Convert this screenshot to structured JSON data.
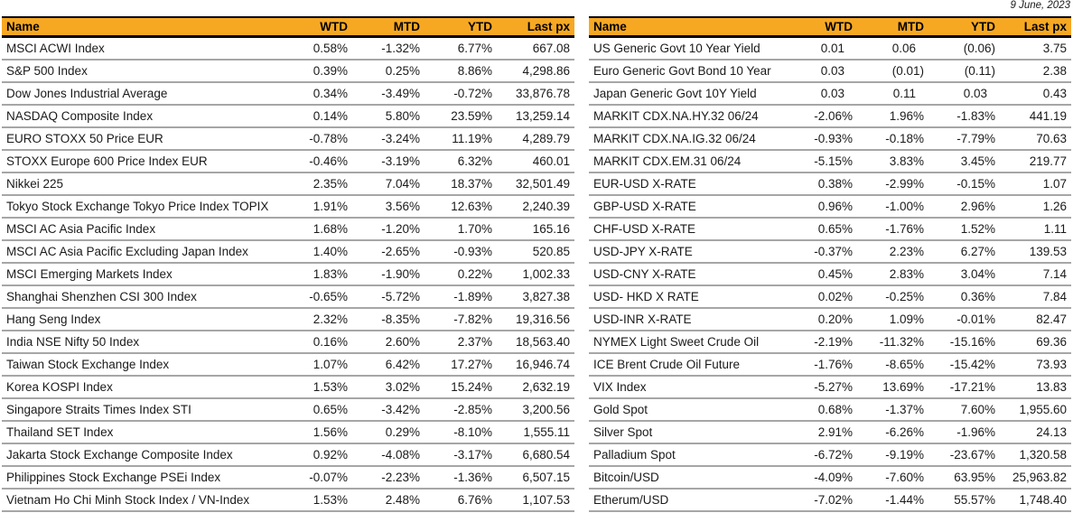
{
  "date_label": "9 June, 2023",
  "columns": [
    "Name",
    "WTD",
    "MTD",
    "YTD",
    "Last px"
  ],
  "colors": {
    "header_bg": "#F7A823",
    "header_border": "#000000",
    "row_border": "#A6A6A6",
    "text": "#1A1A1A"
  },
  "left_table": {
    "rows": [
      {
        "name": "MSCI ACWI Index",
        "wtd": "0.58%",
        "mtd": "-1.32%",
        "ytd": "6.77%",
        "last": "667.08"
      },
      {
        "name": "S&P 500 Index",
        "wtd": "0.39%",
        "mtd": "0.25%",
        "ytd": "8.86%",
        "last": "4,298.86"
      },
      {
        "name": "Dow Jones Industrial Average",
        "wtd": "0.34%",
        "mtd": "-3.49%",
        "ytd": "-0.72%",
        "last": "33,876.78"
      },
      {
        "name": "NASDAQ Composite Index",
        "wtd": "0.14%",
        "mtd": "5.80%",
        "ytd": "23.59%",
        "last": "13,259.14"
      },
      {
        "name": "EURO STOXX 50 Price EUR",
        "wtd": "-0.78%",
        "mtd": "-3.24%",
        "ytd": "11.19%",
        "last": "4,289.79"
      },
      {
        "name": "STOXX Europe 600 Price Index EUR",
        "wtd": "-0.46%",
        "mtd": "-3.19%",
        "ytd": "6.32%",
        "last": "460.01"
      },
      {
        "name": "Nikkei 225",
        "wtd": "2.35%",
        "mtd": "7.04%",
        "ytd": "18.37%",
        "last": "32,501.49"
      },
      {
        "name": "Tokyo Stock Exchange Tokyo Price Index TOPIX",
        "wtd": "1.91%",
        "mtd": "3.56%",
        "ytd": "12.63%",
        "last": "2,240.39"
      },
      {
        "name": "MSCI AC Asia Pacific Index",
        "wtd": "1.68%",
        "mtd": "-1.20%",
        "ytd": "1.70%",
        "last": "165.16"
      },
      {
        "name": "MSCI AC Asia Pacific Excluding Japan Index",
        "wtd": "1.40%",
        "mtd": "-2.65%",
        "ytd": "-0.93%",
        "last": "520.85"
      },
      {
        "name": "MSCI Emerging Markets Index",
        "wtd": "1.83%",
        "mtd": "-1.90%",
        "ytd": "0.22%",
        "last": "1,002.33"
      },
      {
        "name": "Shanghai Shenzhen CSI 300 Index",
        "wtd": "-0.65%",
        "mtd": "-5.72%",
        "ytd": "-1.89%",
        "last": "3,827.38"
      },
      {
        "name": "Hang Seng Index",
        "wtd": "2.32%",
        "mtd": "-8.35%",
        "ytd": "-7.82%",
        "last": "19,316.56"
      },
      {
        "name": "India NSE Nifty 50 Index",
        "wtd": "0.16%",
        "mtd": "2.60%",
        "ytd": "2.37%",
        "last": "18,563.40"
      },
      {
        "name": "Taiwan Stock Exchange  Index",
        "wtd": "1.07%",
        "mtd": "6.42%",
        "ytd": "17.27%",
        "last": "16,946.74"
      },
      {
        "name": "Korea KOSPI Index",
        "wtd": "1.53%",
        "mtd": "3.02%",
        "ytd": "15.24%",
        "last": "2,632.19"
      },
      {
        "name": "Singapore Straits Times Index STI",
        "wtd": "0.65%",
        "mtd": "-3.42%",
        "ytd": "-2.85%",
        "last": "3,200.56"
      },
      {
        "name": "Thailand SET Index",
        "wtd": "1.56%",
        "mtd": "0.29%",
        "ytd": "-8.10%",
        "last": "1,555.11"
      },
      {
        "name": "Jakarta Stock Exchange Composite Index",
        "wtd": "0.92%",
        "mtd": "-4.08%",
        "ytd": "-3.17%",
        "last": "6,680.54"
      },
      {
        "name": "Philippines Stock Exchange PSEi Index",
        "wtd": "-0.07%",
        "mtd": "-2.23%",
        "ytd": "-1.36%",
        "last": "6,507.15"
      },
      {
        "name": "Vietnam Ho Chi Minh Stock Index / VN-Index",
        "wtd": "1.53%",
        "mtd": "2.48%",
        "ytd": "6.76%",
        "last": "1,107.53"
      }
    ]
  },
  "right_table": {
    "rows": [
      {
        "name": "US Generic Govt 10 Year Yield",
        "wtd": "0.01",
        "mtd": "0.06",
        "ytd": "(0.06)",
        "last": "3.75"
      },
      {
        "name": "Euro Generic Govt Bond 10 Year",
        "wtd": "0.03",
        "mtd": "(0.01)",
        "ytd": "(0.11)",
        "last": "2.38"
      },
      {
        "name": "Japan Generic Govt 10Y Yield",
        "wtd": "0.03",
        "mtd": "0.11",
        "ytd": "0.03",
        "last": "0.43"
      },
      {
        "name": "MARKIT CDX.NA.HY.32 06/24",
        "wtd": "-2.06%",
        "mtd": "1.96%",
        "ytd": "-1.83%",
        "last": "441.19"
      },
      {
        "name": "MARKIT CDX.NA.IG.32 06/24",
        "wtd": "-0.93%",
        "mtd": "-0.18%",
        "ytd": "-7.79%",
        "last": "70.63"
      },
      {
        "name": "MARKIT CDX.EM.31 06/24",
        "wtd": "-5.15%",
        "mtd": "3.83%",
        "ytd": "3.45%",
        "last": "219.77"
      },
      {
        "name": "EUR-USD X-RATE",
        "wtd": "0.38%",
        "mtd": "-2.99%",
        "ytd": "-0.15%",
        "last": "1.07"
      },
      {
        "name": "GBP-USD X-RATE",
        "wtd": "0.96%",
        "mtd": "-1.00%",
        "ytd": "2.96%",
        "last": "1.26"
      },
      {
        "name": "CHF-USD X-RATE",
        "wtd": "0.65%",
        "mtd": "-1.76%",
        "ytd": "1.52%",
        "last": "1.11"
      },
      {
        "name": "USD-JPY X-RATE",
        "wtd": "-0.37%",
        "mtd": "2.23%",
        "ytd": "6.27%",
        "last": "139.53"
      },
      {
        "name": "USD-CNY X-RATE",
        "wtd": "0.45%",
        "mtd": "2.83%",
        "ytd": "3.04%",
        "last": "7.14"
      },
      {
        "name": "USD- HKD X RATE",
        "wtd": "0.02%",
        "mtd": "-0.25%",
        "ytd": "0.36%",
        "last": "7.84"
      },
      {
        "name": "USD-INR X-RATE",
        "wtd": "0.20%",
        "mtd": "1.09%",
        "ytd": "-0.01%",
        "last": "82.47"
      },
      {
        "name": "NYMEX Light Sweet Crude Oil",
        "wtd": "-2.19%",
        "mtd": "-11.32%",
        "ytd": "-15.16%",
        "last": "69.36"
      },
      {
        "name": "ICE Brent Crude Oil Future",
        "wtd": "-1.76%",
        "mtd": "-8.65%",
        "ytd": "-15.42%",
        "last": "73.93"
      },
      {
        "name": "VIX Index",
        "wtd": "-5.27%",
        "mtd": "13.69%",
        "ytd": "-17.21%",
        "last": "13.83"
      },
      {
        "name": "Gold Spot",
        "wtd": "0.68%",
        "mtd": "-1.37%",
        "ytd": "7.60%",
        "last": "1,955.60"
      },
      {
        "name": "Silver Spot",
        "wtd": "2.91%",
        "mtd": "-6.26%",
        "ytd": "-1.96%",
        "last": "24.13"
      },
      {
        "name": "Palladium Spot",
        "wtd": "-6.72%",
        "mtd": "-9.19%",
        "ytd": "-23.67%",
        "last": "1,320.58"
      },
      {
        "name": "Bitcoin/USD",
        "wtd": "-4.09%",
        "mtd": "-7.60%",
        "ytd": "63.95%",
        "last": "25,963.82"
      },
      {
        "name": "Etherum/USD",
        "wtd": "-7.02%",
        "mtd": "-1.44%",
        "ytd": "55.57%",
        "last": "1,748.40"
      }
    ]
  }
}
